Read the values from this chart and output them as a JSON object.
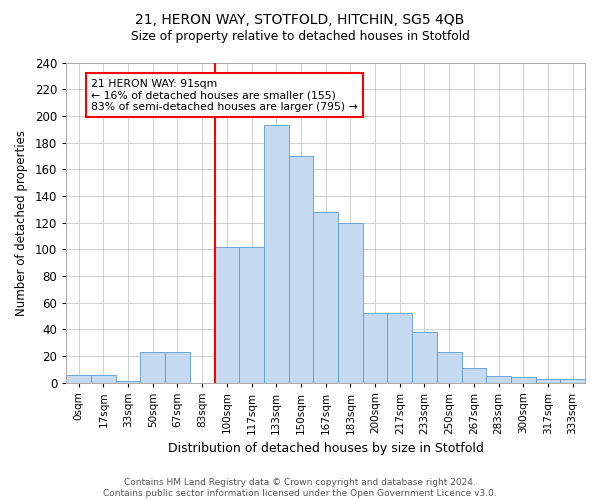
{
  "title1": "21, HERON WAY, STOTFOLD, HITCHIN, SG5 4QB",
  "title2": "Size of property relative to detached houses in Stotfold",
  "xlabel": "Distribution of detached houses by size in Stotfold",
  "ylabel": "Number of detached properties",
  "bin_labels": [
    "0sqm",
    "17sqm",
    "33sqm",
    "50sqm",
    "67sqm",
    "83sqm",
    "100sqm",
    "117sqm",
    "133sqm",
    "150sqm",
    "167sqm",
    "183sqm",
    "200sqm",
    "217sqm",
    "233sqm",
    "250sqm",
    "267sqm",
    "283sqm",
    "300sqm",
    "317sqm",
    "333sqm"
  ],
  "bin_values": [
    6,
    6,
    1,
    23,
    23,
    0,
    102,
    102,
    193,
    170,
    128,
    120,
    52,
    52,
    38,
    23,
    11,
    5,
    4,
    3,
    3
  ],
  "bar_color": "#c5d9f0",
  "bar_edgecolor": "#5b9bd5",
  "redline_x": 5.5,
  "annotation_text": "21 HERON WAY: 91sqm\n← 16% of detached houses are smaller (155)\n83% of semi-detached houses are larger (795) →",
  "annotation_box_color": "white",
  "annotation_box_edgecolor": "red",
  "footer": "Contains HM Land Registry data © Crown copyright and database right 2024.\nContains public sector information licensed under the Open Government Licence v3.0.",
  "ylim": [
    0,
    240
  ],
  "yticks": [
    0,
    20,
    40,
    60,
    80,
    100,
    120,
    140,
    160,
    180,
    200,
    220,
    240
  ],
  "grid_color": "#d0d0d0",
  "background_color": "#ffffff"
}
